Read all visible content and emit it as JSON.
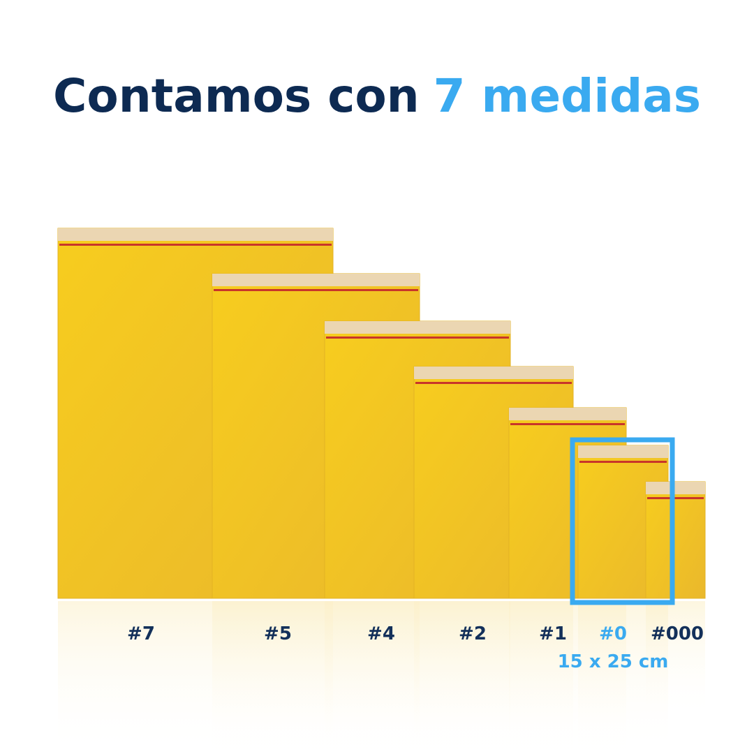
{
  "title": {
    "lead": "Contamos con",
    "highlight": "7 medidas"
  },
  "sizes": [
    {
      "label": "#7"
    },
    {
      "label": "#5"
    },
    {
      "label": "#4"
    },
    {
      "label": "#2"
    },
    {
      "label": "#1"
    },
    {
      "label": "#0",
      "dimensions": "15 x 25 cm"
    },
    {
      "label": "#000"
    }
  ]
}
